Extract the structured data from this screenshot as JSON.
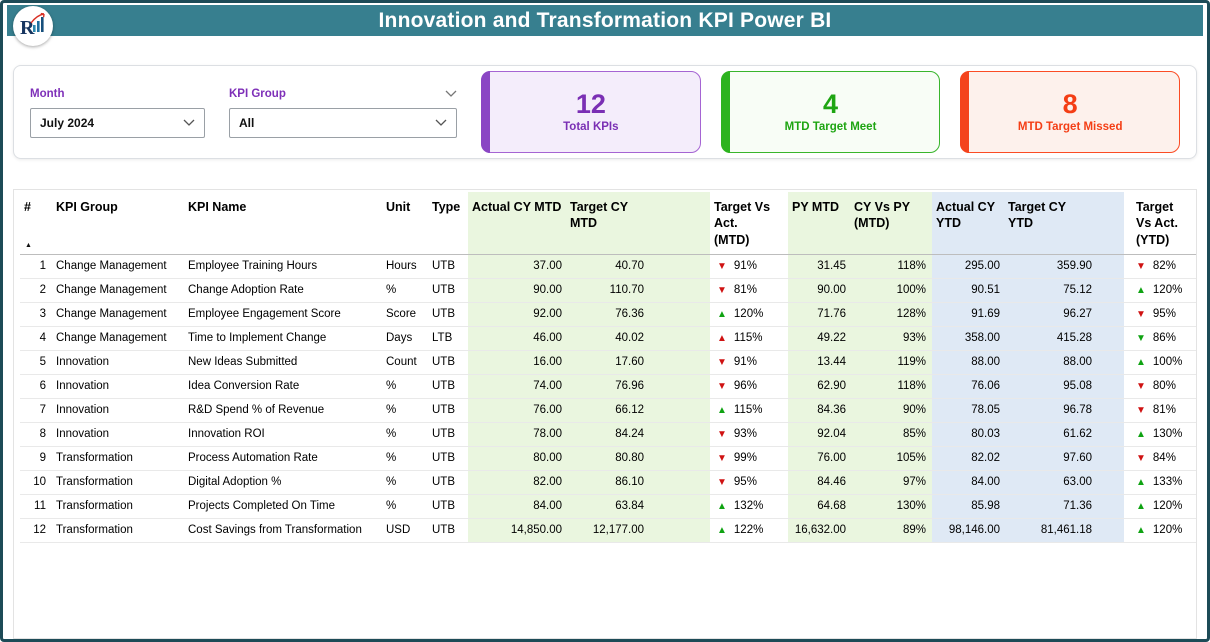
{
  "header": {
    "title": "Innovation and Transformation KPI Power BI",
    "bar_color": "#377F8F"
  },
  "logo": {
    "letter": "R"
  },
  "filters": {
    "month": {
      "label": "Month",
      "value": "July 2024"
    },
    "kpi_group": {
      "label": "KPI Group",
      "value": "All"
    }
  },
  "cards": {
    "total": {
      "value": "12",
      "label": "Total KPIs",
      "color": "#7A2FB4"
    },
    "meet": {
      "value": "4",
      "label": "MTD Target Meet",
      "color": "#1EA512"
    },
    "missed": {
      "value": "8",
      "label": "MTD Target Missed",
      "color": "#F43E15"
    }
  },
  "table": {
    "sort_indicator": "▲",
    "band_colors": {
      "mtd_band": "#EAF6DF",
      "ytd_band": "#DFE9F5"
    },
    "status_colors": {
      "good": "#0FA312",
      "bad": "#CF1212"
    },
    "columns": [
      "#",
      "KPI Group",
      "KPI Name",
      "Unit",
      "Type",
      "Actual CY MTD",
      "Target CY MTD",
      "Target Vs Act. (MTD)",
      "PY MTD",
      "CY Vs PY (MTD)",
      "Actual CY YTD",
      "Target CY YTD",
      "Target Vs Act. (YTD)"
    ],
    "rows": [
      {
        "num": "1",
        "group": "Change Management",
        "name": "Employee Training Hours",
        "unit": "Hours",
        "type": "UTB",
        "actual_mtd": "37.00",
        "target_mtd": "40.70",
        "tva_mtd": {
          "arrow": "down",
          "color": "red",
          "value": "91%"
        },
        "py_mtd": "31.45",
        "cy_py": "118%",
        "actual_ytd": "295.00",
        "target_ytd": "359.90",
        "tva_ytd": {
          "arrow": "down",
          "color": "red",
          "value": "82%"
        }
      },
      {
        "num": "2",
        "group": "Change Management",
        "name": "Change Adoption Rate",
        "unit": "%",
        "type": "UTB",
        "actual_mtd": "90.00",
        "target_mtd": "110.70",
        "tva_mtd": {
          "arrow": "down",
          "color": "red",
          "value": "81%"
        },
        "py_mtd": "90.00",
        "cy_py": "100%",
        "actual_ytd": "90.51",
        "target_ytd": "75.12",
        "tva_ytd": {
          "arrow": "up",
          "color": "green",
          "value": "120%"
        }
      },
      {
        "num": "3",
        "group": "Change Management",
        "name": "Employee Engagement Score",
        "unit": "Score",
        "type": "UTB",
        "actual_mtd": "92.00",
        "target_mtd": "76.36",
        "tva_mtd": {
          "arrow": "up",
          "color": "green",
          "value": "120%"
        },
        "py_mtd": "71.76",
        "cy_py": "128%",
        "actual_ytd": "91.69",
        "target_ytd": "96.27",
        "tva_ytd": {
          "arrow": "down",
          "color": "red",
          "value": "95%"
        }
      },
      {
        "num": "4",
        "group": "Change Management",
        "name": "Time to Implement Change",
        "unit": "Days",
        "type": "LTB",
        "actual_mtd": "46.00",
        "target_mtd": "40.02",
        "tva_mtd": {
          "arrow": "up",
          "color": "red",
          "value": "115%"
        },
        "py_mtd": "49.22",
        "cy_py": "93%",
        "actual_ytd": "358.00",
        "target_ytd": "415.28",
        "tva_ytd": {
          "arrow": "down",
          "color": "green",
          "value": "86%"
        }
      },
      {
        "num": "5",
        "group": "Innovation",
        "name": "New Ideas Submitted",
        "unit": "Count",
        "type": "UTB",
        "actual_mtd": "16.00",
        "target_mtd": "17.60",
        "tva_mtd": {
          "arrow": "down",
          "color": "red",
          "value": "91%"
        },
        "py_mtd": "13.44",
        "cy_py": "119%",
        "actual_ytd": "88.00",
        "target_ytd": "88.00",
        "tva_ytd": {
          "arrow": "up",
          "color": "green",
          "value": "100%"
        }
      },
      {
        "num": "6",
        "group": "Innovation",
        "name": "Idea Conversion Rate",
        "unit": "%",
        "type": "UTB",
        "actual_mtd": "74.00",
        "target_mtd": "76.96",
        "tva_mtd": {
          "arrow": "down",
          "color": "red",
          "value": "96%"
        },
        "py_mtd": "62.90",
        "cy_py": "118%",
        "actual_ytd": "76.06",
        "target_ytd": "95.08",
        "tva_ytd": {
          "arrow": "down",
          "color": "red",
          "value": "80%"
        }
      },
      {
        "num": "7",
        "group": "Innovation",
        "name": "R&D Spend % of Revenue",
        "unit": "%",
        "type": "UTB",
        "actual_mtd": "76.00",
        "target_mtd": "66.12",
        "tva_mtd": {
          "arrow": "up",
          "color": "green",
          "value": "115%"
        },
        "py_mtd": "84.36",
        "cy_py": "90%",
        "actual_ytd": "78.05",
        "target_ytd": "96.78",
        "tva_ytd": {
          "arrow": "down",
          "color": "red",
          "value": "81%"
        }
      },
      {
        "num": "8",
        "group": "Innovation",
        "name": "Innovation ROI",
        "unit": "%",
        "type": "UTB",
        "actual_mtd": "78.00",
        "target_mtd": "84.24",
        "tva_mtd": {
          "arrow": "down",
          "color": "red",
          "value": "93%"
        },
        "py_mtd": "92.04",
        "cy_py": "85%",
        "actual_ytd": "80.03",
        "target_ytd": "61.62",
        "tva_ytd": {
          "arrow": "up",
          "color": "green",
          "value": "130%"
        }
      },
      {
        "num": "9",
        "group": "Transformation",
        "name": "Process Automation Rate",
        "unit": "%",
        "type": "UTB",
        "actual_mtd": "80.00",
        "target_mtd": "80.80",
        "tva_mtd": {
          "arrow": "down",
          "color": "red",
          "value": "99%"
        },
        "py_mtd": "76.00",
        "cy_py": "105%",
        "actual_ytd": "82.02",
        "target_ytd": "97.60",
        "tva_ytd": {
          "arrow": "down",
          "color": "red",
          "value": "84%"
        }
      },
      {
        "num": "10",
        "group": "Transformation",
        "name": "Digital Adoption %",
        "unit": "%",
        "type": "UTB",
        "actual_mtd": "82.00",
        "target_mtd": "86.10",
        "tva_mtd": {
          "arrow": "down",
          "color": "red",
          "value": "95%"
        },
        "py_mtd": "84.46",
        "cy_py": "97%",
        "actual_ytd": "84.00",
        "target_ytd": "63.00",
        "tva_ytd": {
          "arrow": "up",
          "color": "green",
          "value": "133%"
        }
      },
      {
        "num": "11",
        "group": "Transformation",
        "name": "Projects Completed On Time",
        "unit": "%",
        "type": "UTB",
        "actual_mtd": "84.00",
        "target_mtd": "63.84",
        "tva_mtd": {
          "arrow": "up",
          "color": "green",
          "value": "132%"
        },
        "py_mtd": "64.68",
        "cy_py": "130%",
        "actual_ytd": "85.98",
        "target_ytd": "71.36",
        "tva_ytd": {
          "arrow": "up",
          "color": "green",
          "value": "120%"
        }
      },
      {
        "num": "12",
        "group": "Transformation",
        "name": "Cost Savings from Transformation",
        "unit": "USD",
        "type": "UTB",
        "actual_mtd": "14,850.00",
        "target_mtd": "12,177.00",
        "tva_mtd": {
          "arrow": "up",
          "color": "green",
          "value": "122%"
        },
        "py_mtd": "16,632.00",
        "cy_py": "89%",
        "actual_ytd": "98,146.00",
        "target_ytd": "81,461.18",
        "tva_ytd": {
          "arrow": "up",
          "color": "green",
          "value": "120%"
        }
      }
    ]
  }
}
